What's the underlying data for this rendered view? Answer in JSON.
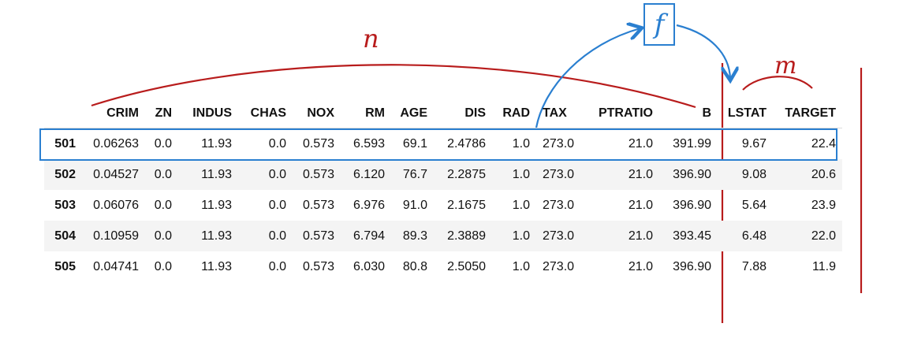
{
  "annotations": {
    "n_label": "n",
    "m_label": "m",
    "f_label": "f",
    "colors": {
      "red": "#b81c1c",
      "blue": "#2a7fd0"
    }
  },
  "table": {
    "columns": [
      "",
      "CRIM",
      "ZN",
      "INDUS",
      "CHAS",
      "NOX",
      "RM",
      "AGE",
      "DIS",
      "RAD",
      "TAX",
      "PTRATIO",
      "B",
      "LSTAT",
      "TARGET"
    ],
    "rows": [
      [
        "501",
        "0.06263",
        "0.0",
        "11.93",
        "0.0",
        "0.573",
        "6.593",
        "69.1",
        "2.4786",
        "1.0",
        "273.0",
        "21.0",
        "391.99",
        "9.67",
        "22.4"
      ],
      [
        "502",
        "0.04527",
        "0.0",
        "11.93",
        "0.0",
        "0.573",
        "6.120",
        "76.7",
        "2.2875",
        "1.0",
        "273.0",
        "21.0",
        "396.90",
        "9.08",
        "20.6"
      ],
      [
        "503",
        "0.06076",
        "0.0",
        "11.93",
        "0.0",
        "0.573",
        "6.976",
        "91.0",
        "2.1675",
        "1.0",
        "273.0",
        "21.0",
        "396.90",
        "5.64",
        "23.9"
      ],
      [
        "504",
        "0.10959",
        "0.0",
        "11.93",
        "0.0",
        "0.573",
        "6.794",
        "89.3",
        "2.3889",
        "1.0",
        "273.0",
        "21.0",
        "393.45",
        "6.48",
        "22.0"
      ],
      [
        "505",
        "0.04741",
        "0.0",
        "11.93",
        "0.0",
        "0.573",
        "6.030",
        "80.8",
        "2.5050",
        "1.0",
        "273.0",
        "21.0",
        "396.90",
        "7.88",
        "11.9"
      ]
    ]
  }
}
